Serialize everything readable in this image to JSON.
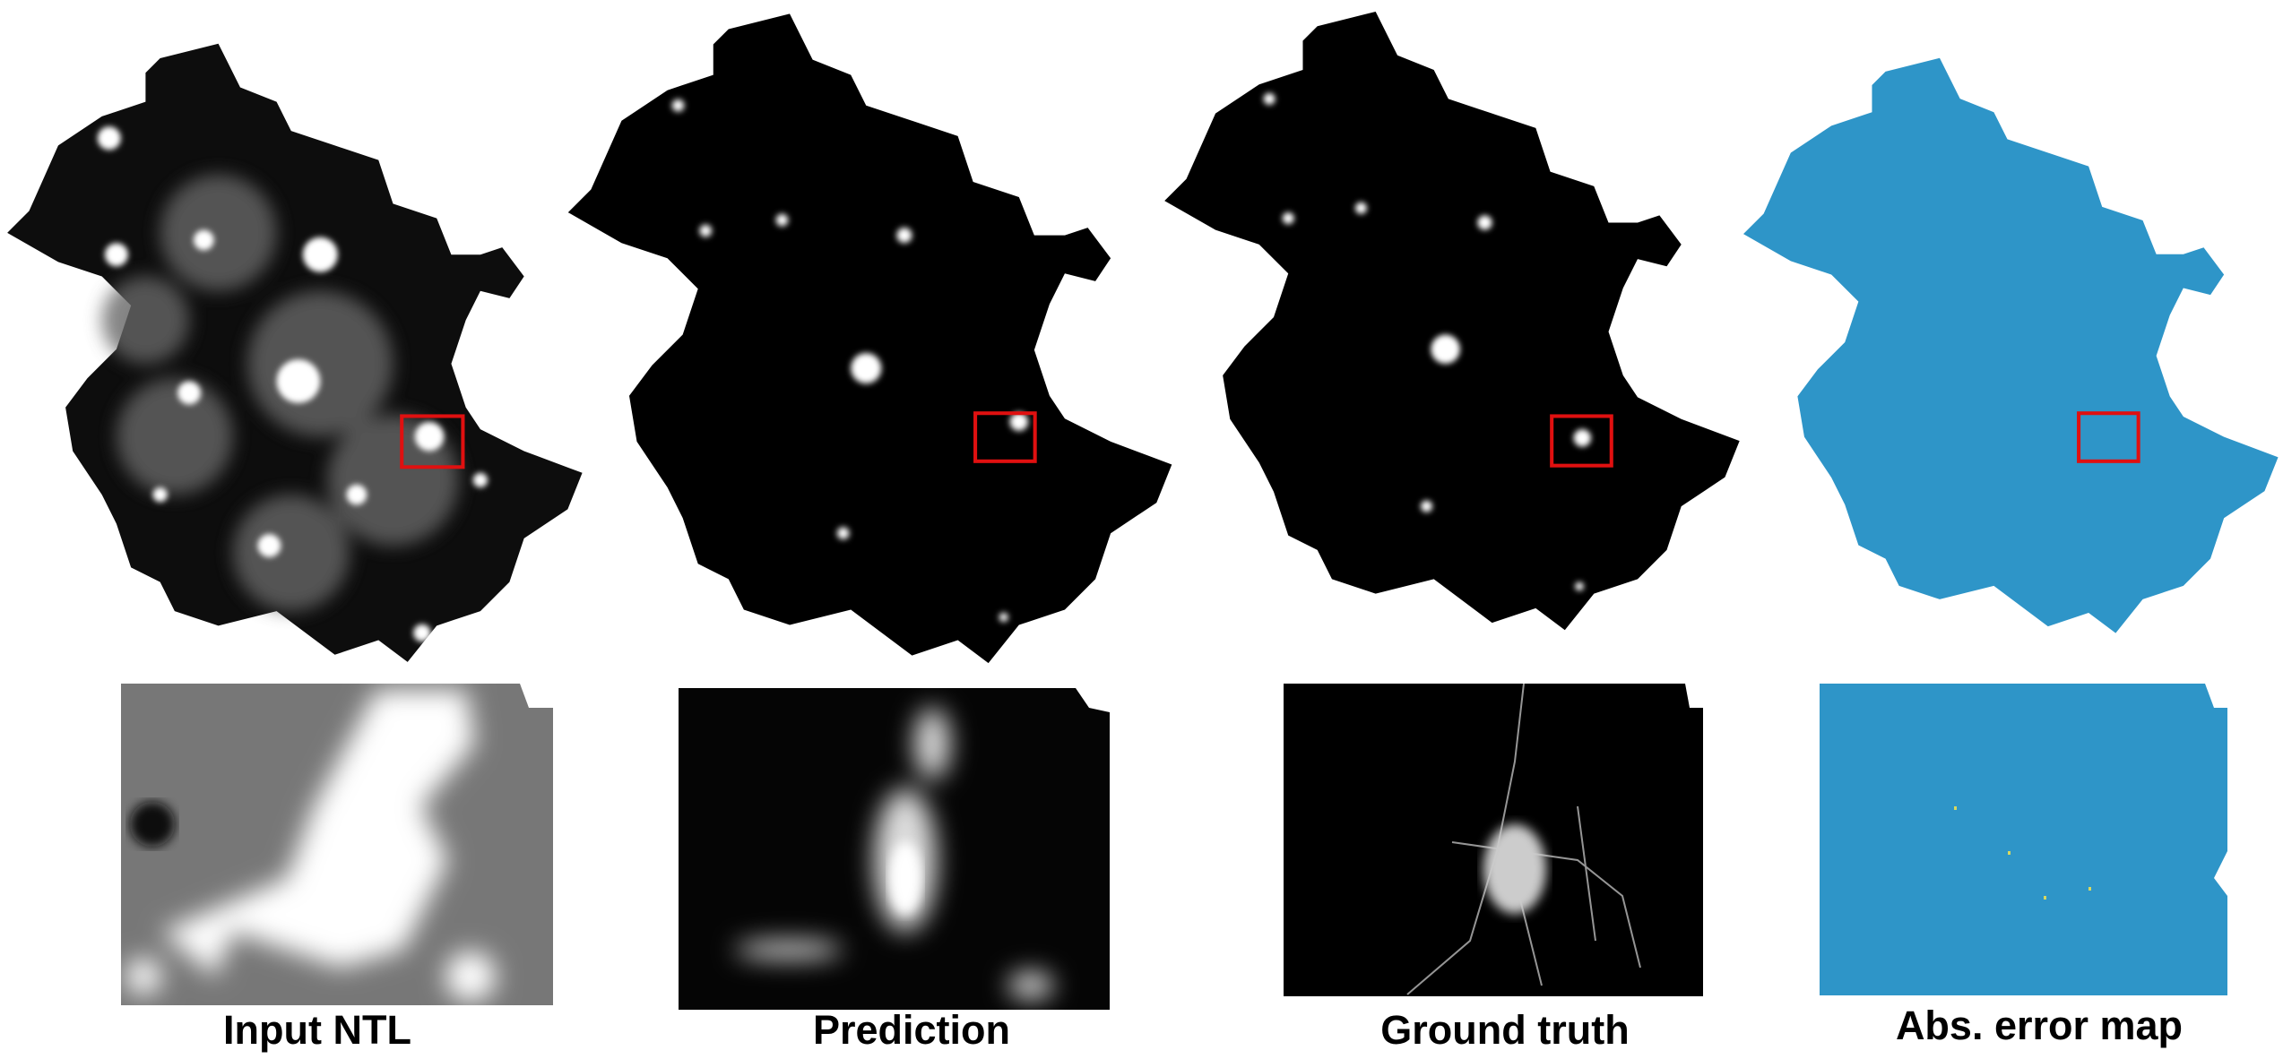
{
  "panels": [
    {
      "caption": "Input NTL"
    },
    {
      "caption": "Prediction"
    },
    {
      "caption": "Ground truth"
    },
    {
      "caption": "Abs. error map"
    }
  ]
}
